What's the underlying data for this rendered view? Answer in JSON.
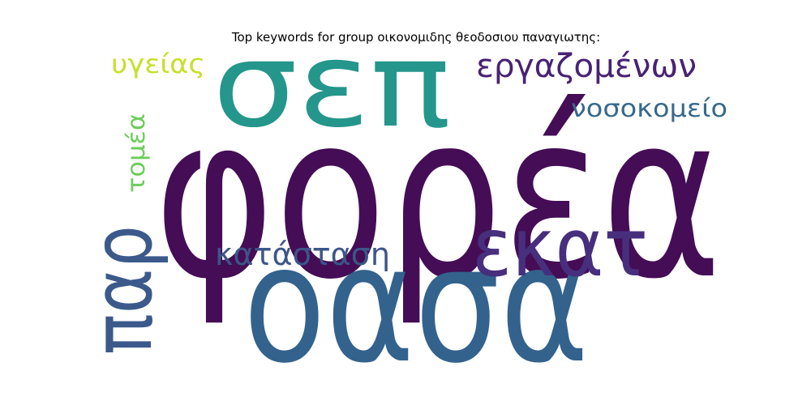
{
  "title": "Top keywords for group οικονομιδης θεοδοσιου παναγιωτης:",
  "words": [
    {
      "text": "φορέα",
      "color": "#440d56",
      "weight": 1.0
    },
    {
      "text": "οασα",
      "color": "#33628d",
      "weight": 0.8
    },
    {
      "text": "σεπ",
      "color": "#24968b",
      "weight": 0.6
    },
    {
      "text": "εκατ",
      "color": "#472f7d",
      "weight": 0.45
    },
    {
      "text": "παρ",
      "color": "#3b5a8b",
      "weight": 0.42
    },
    {
      "text": "εργαζομένων",
      "color": "#482274",
      "weight": 0.28
    },
    {
      "text": "κατάσταση",
      "color": "#3d5589",
      "weight": 0.25
    },
    {
      "text": "νοσοκομείο",
      "color": "#37698c",
      "weight": 0.2
    },
    {
      "text": "υγείας",
      "color": "#c6e02c",
      "weight": 0.2
    },
    {
      "text": "τομέα",
      "color": "#6ccd5a",
      "weight": 0.18
    }
  ]
}
